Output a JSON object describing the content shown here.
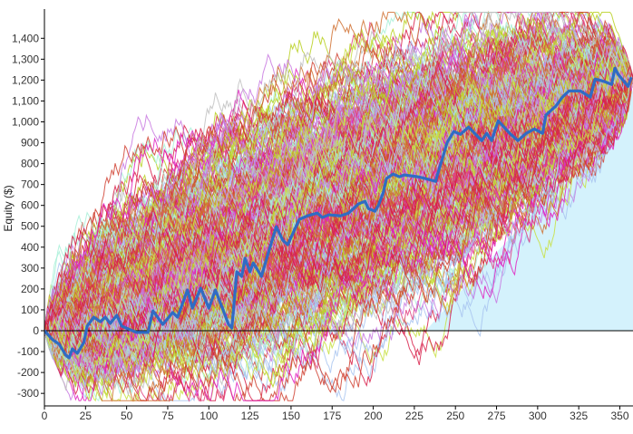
{
  "chart_data": {
    "type": "line",
    "title": "",
    "xlabel": "",
    "ylabel": "Equity ($)",
    "xlim": [
      0,
      358
    ],
    "ylim": [
      -360,
      1540
    ],
    "grid": false,
    "legend": "none",
    "x_ticks": [
      0,
      25,
      50,
      75,
      100,
      125,
      150,
      175,
      200,
      225,
      250,
      275,
      300,
      325,
      350
    ],
    "x_tick_labels": [
      "0",
      "25",
      "50",
      "75",
      "100",
      "125",
      "150",
      "175",
      "200",
      "225",
      "250",
      "275",
      "300",
      "325",
      "350"
    ],
    "y_ticks": [
      -300,
      -200,
      -100,
      0,
      100,
      200,
      300,
      400,
      500,
      600,
      700,
      800,
      900,
      1000,
      1100,
      1200,
      1300,
      1400
    ],
    "y_tick_labels": [
      "-300",
      "-200",
      "-100",
      "0",
      "100",
      "200",
      "300",
      "400",
      "500",
      "600",
      "700",
      "800",
      "900",
      "1,000",
      "1,100",
      "1,200",
      "1,300",
      "1,400"
    ],
    "highlighted_series": {
      "color": "#2f6cc4",
      "points": [
        [
          0,
          0
        ],
        [
          5,
          -43
        ],
        [
          9,
          -65
        ],
        [
          13,
          -117
        ],
        [
          15,
          -130
        ],
        [
          17,
          -87
        ],
        [
          20,
          -108
        ],
        [
          24,
          -56
        ],
        [
          26,
          22
        ],
        [
          30,
          65
        ],
        [
          34,
          43
        ],
        [
          37,
          65
        ],
        [
          40,
          35
        ],
        [
          44,
          74
        ],
        [
          47,
          22
        ],
        [
          56,
          -8
        ],
        [
          63,
          -8
        ],
        [
          66,
          95
        ],
        [
          72,
          30
        ],
        [
          78,
          87
        ],
        [
          81,
          65
        ],
        [
          87,
          195
        ],
        [
          90,
          108
        ],
        [
          95,
          204
        ],
        [
          100,
          108
        ],
        [
          104,
          195
        ],
        [
          112,
          30
        ],
        [
          114,
          13
        ],
        [
          117,
          282
        ],
        [
          120,
          260
        ],
        [
          122,
          347
        ],
        [
          125,
          282
        ],
        [
          127,
          325
        ],
        [
          132,
          260
        ],
        [
          136,
          368
        ],
        [
          141,
          498
        ],
        [
          145,
          433
        ],
        [
          148,
          412
        ],
        [
          155,
          533
        ],
        [
          160,
          550
        ],
        [
          166,
          563
        ],
        [
          169,
          542
        ],
        [
          173,
          555
        ],
        [
          180,
          550
        ],
        [
          185,
          563
        ],
        [
          191,
          607
        ],
        [
          195,
          620
        ],
        [
          197,
          585
        ],
        [
          201,
          572
        ],
        [
          203,
          598
        ],
        [
          206,
          659
        ],
        [
          208,
          728
        ],
        [
          212,
          750
        ],
        [
          216,
          737
        ],
        [
          219,
          746
        ],
        [
          227,
          737
        ],
        [
          232,
          728
        ],
        [
          238,
          715
        ],
        [
          239,
          746
        ],
        [
          242,
          823
        ],
        [
          245,
          902
        ],
        [
          249,
          954
        ],
        [
          253,
          940
        ],
        [
          258,
          975
        ],
        [
          266,
          910
        ],
        [
          269,
          945
        ],
        [
          272,
          910
        ],
        [
          276,
          1005
        ],
        [
          283,
          945
        ],
        [
          288,
          910
        ],
        [
          293,
          945
        ],
        [
          298,
          966
        ],
        [
          303,
          945
        ],
        [
          305,
          1032
        ],
        [
          311,
          1075
        ],
        [
          315,
          1118
        ],
        [
          319,
          1148
        ],
        [
          326,
          1148
        ],
        [
          332,
          1118
        ],
        [
          335,
          1205
        ],
        [
          341,
          1192
        ],
        [
          345,
          1179
        ],
        [
          347,
          1257
        ],
        [
          349,
          1227
        ],
        [
          355,
          1170
        ],
        [
          357,
          1214
        ]
      ]
    },
    "shaded_region": {
      "color": "#d4f2fc",
      "upper_boundary": [
        [
          232,
          0
        ],
        [
          260,
          250
        ],
        [
          290,
          500
        ],
        [
          320,
          780
        ],
        [
          340,
          960
        ],
        [
          358,
          1150
        ]
      ]
    },
    "simulated_series_colors": [
      "#e020c0",
      "#d8204a",
      "#d07030",
      "#c8e040",
      "#a8f0d8",
      "#c878e0",
      "#a8c4f0",
      "#e04080",
      "#b8d020",
      "#d04030",
      "#c0c0c0"
    ],
    "zero_line_color": "#000000"
  }
}
